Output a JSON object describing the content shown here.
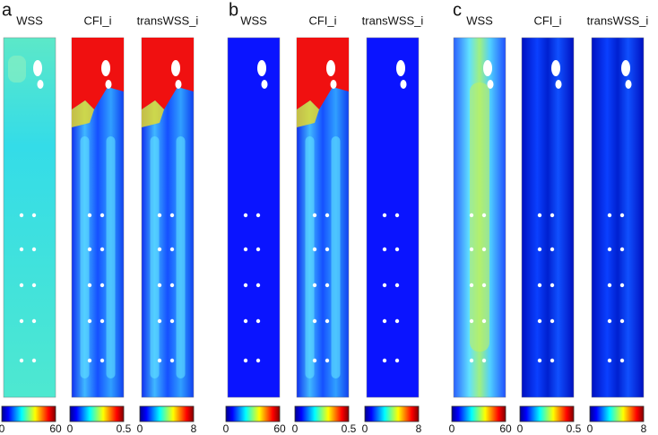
{
  "panels": [
    {
      "label": "a",
      "maps": [
        {
          "title": "WSS",
          "colorbar_ticks": [
            0,
            60
          ]
        },
        {
          "title": "CFI_i",
          "colorbar_ticks": [
            0,
            0.5
          ]
        },
        {
          "title": "transWSS_i",
          "colorbar_ticks": [
            0,
            8
          ]
        }
      ]
    },
    {
      "label": "b",
      "maps": [
        {
          "title": "WSS",
          "colorbar_ticks": [
            0,
            60
          ]
        },
        {
          "title": "CFI_i",
          "colorbar_ticks": [
            0,
            0.5
          ]
        },
        {
          "title": "transWSS_i",
          "colorbar_ticks": [
            0,
            8
          ]
        }
      ]
    },
    {
      "label": "c",
      "maps": [
        {
          "title": "WSS",
          "colorbar_ticks": [
            0,
            60
          ]
        },
        {
          "title": "CFI_i",
          "colorbar_ticks": [
            0,
            0.5
          ]
        },
        {
          "title": "transWSS_i",
          "colorbar_ticks": [
            0,
            8
          ]
        }
      ]
    }
  ]
}
